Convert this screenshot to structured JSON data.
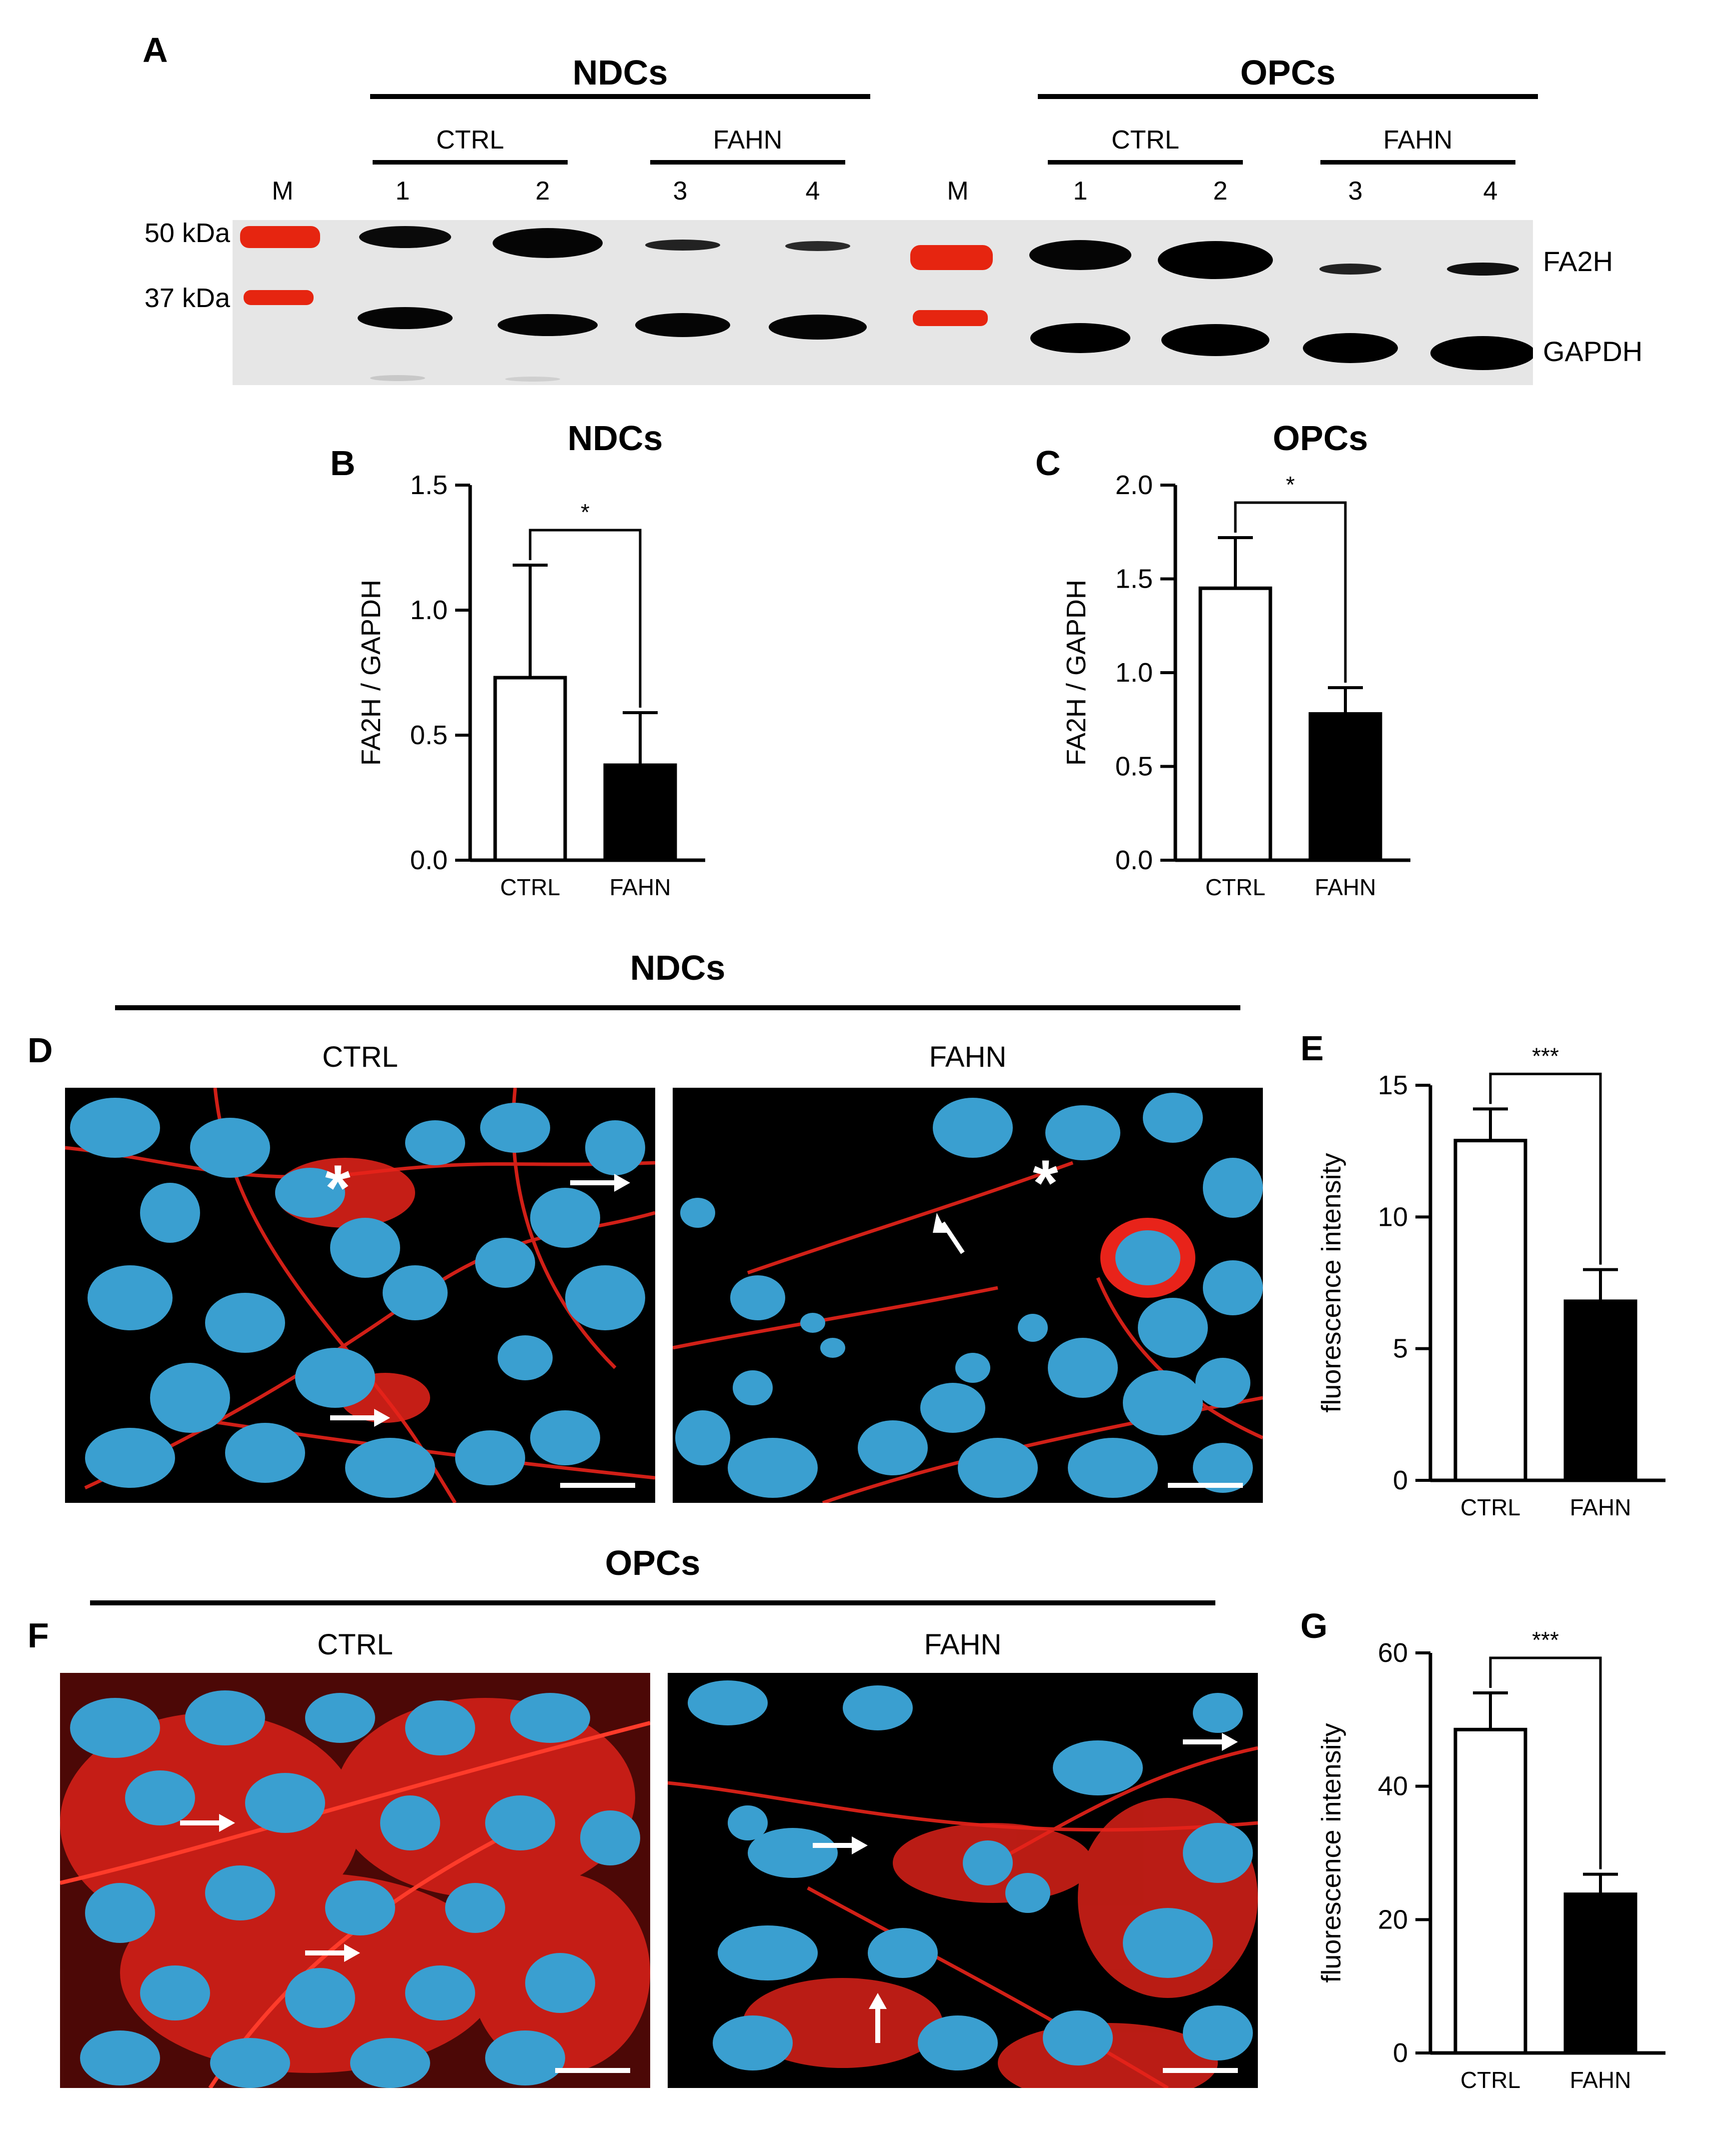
{
  "panelA": {
    "letter": "A",
    "groups": [
      {
        "name": "NDCs",
        "subgroups": [
          "CTRL",
          "FAHN"
        ]
      },
      {
        "name": "OPCs",
        "subgroups": [
          "CTRL",
          "FAHN"
        ]
      }
    ],
    "lanes_left": [
      "M",
      "1",
      "2",
      "3",
      "4"
    ],
    "lanes_right": [
      "M",
      "1",
      "2",
      "3",
      "4"
    ],
    "markers": [
      "50 kDa",
      "37 kDa"
    ],
    "bands": [
      "FA2H",
      "GAPDH"
    ]
  },
  "panelD": {
    "letter": "D",
    "title": "NDCs",
    "left": "CTRL",
    "right": "FAHN"
  },
  "panelF": {
    "letter": "F",
    "title": "OPCs",
    "left": "CTRL",
    "right": "FAHN"
  },
  "colors": {
    "nucleus": "#3a9fd0",
    "stain": "#e8231a",
    "background": "#000000",
    "gel": "#e6e6e6",
    "marker": "#e62510"
  },
  "chart_data": [
    {
      "id": "B",
      "letter": "B",
      "type": "bar",
      "title": "NDCs",
      "ylabel": "FA2H / GAPDH",
      "categories": [
        "CTRL",
        "FAHN"
      ],
      "values": [
        0.73,
        0.38
      ],
      "errors": [
        0.45,
        0.21
      ],
      "ylim": [
        0,
        1.5
      ],
      "ticks": [
        "0.0",
        "0.5",
        "1.0",
        "1.5"
      ],
      "tickValues": [
        0,
        0.5,
        1.0,
        1.5
      ],
      "significance": "*",
      "fills": [
        "#ffffff",
        "#000000"
      ]
    },
    {
      "id": "C",
      "letter": "C",
      "type": "bar",
      "title": "OPCs",
      "ylabel": "FA2H / GAPDH",
      "categories": [
        "CTRL",
        "FAHN"
      ],
      "values": [
        1.45,
        0.78
      ],
      "errors": [
        0.27,
        0.14
      ],
      "ylim": [
        0,
        2.0
      ],
      "ticks": [
        "0.0",
        "0.5",
        "1.0",
        "1.5",
        "2.0"
      ],
      "tickValues": [
        0,
        0.5,
        1.0,
        1.5,
        2.0
      ],
      "significance": "*",
      "fills": [
        "#ffffff",
        "#000000"
      ]
    },
    {
      "id": "E",
      "letter": "E",
      "type": "bar",
      "title": "",
      "ylabel": "fluorescence intensity",
      "categories": [
        "CTRL",
        "FAHN"
      ],
      "values": [
        12.9,
        6.8
      ],
      "errors": [
        1.2,
        1.2
      ],
      "ylim": [
        0,
        15
      ],
      "ticks": [
        "0",
        "5",
        "10",
        "15"
      ],
      "tickValues": [
        0,
        5,
        10,
        15
      ],
      "significance": "***",
      "fills": [
        "#ffffff",
        "#000000"
      ]
    },
    {
      "id": "G",
      "letter": "G",
      "type": "bar",
      "title": "",
      "ylabel": "fluorescence intensity",
      "categories": [
        "CTRL",
        "FAHN"
      ],
      "values": [
        48.5,
        23.8
      ],
      "errors": [
        5.5,
        3.0
      ],
      "ylim": [
        0,
        60
      ],
      "ticks": [
        "0",
        "20",
        "40",
        "60"
      ],
      "tickValues": [
        0,
        20,
        40,
        60
      ],
      "significance": "***",
      "fills": [
        "#ffffff",
        "#000000"
      ]
    }
  ]
}
